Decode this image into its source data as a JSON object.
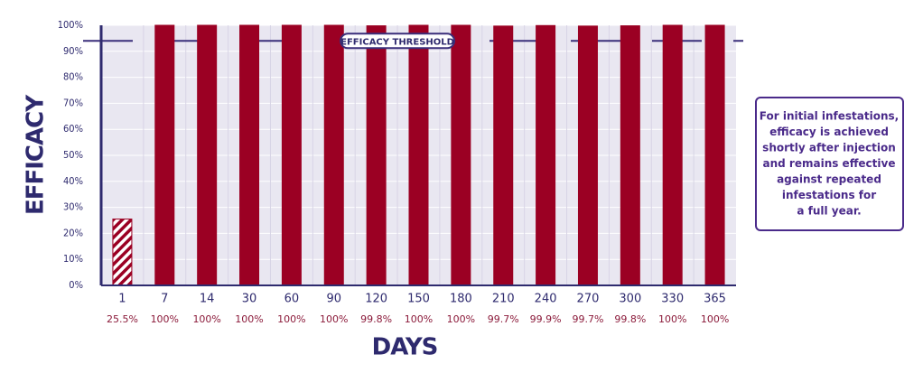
{
  "chart_data": {
    "type": "bar",
    "categories": [
      "1",
      "7",
      "14",
      "30",
      "60",
      "90",
      "120",
      "150",
      "180",
      "210",
      "240",
      "270",
      "300",
      "330",
      "365"
    ],
    "values": [
      25.5,
      100,
      100,
      100,
      100,
      100,
      99.8,
      100,
      100,
      99.7,
      99.9,
      99.7,
      99.8,
      100,
      100
    ],
    "value_labels": [
      "25.5%",
      "100%",
      "100%",
      "100%",
      "100%",
      "100%",
      "99.8%",
      "100%",
      "100%",
      "99.7%",
      "99.9%",
      "99.7%",
      "99.8%",
      "100%",
      "100%"
    ],
    "color": "#9b0023",
    "ylim": [
      0,
      100
    ],
    "yticks": [
      {
        "value": 0,
        "label": "0%"
      },
      {
        "value": 10,
        "label": "10%"
      },
      {
        "value": 20,
        "label": "20%"
      },
      {
        "value": 30,
        "label": "30%"
      },
      {
        "value": 40,
        "label": "40%"
      },
      {
        "value": 50,
        "label": "50%"
      },
      {
        "value": 60,
        "label": "60%"
      },
      {
        "value": 70,
        "label": "70%"
      },
      {
        "value": 80,
        "label": "80%"
      },
      {
        "value": 90,
        "label": "90%"
      },
      {
        "value": 100,
        "label": "100%"
      }
    ],
    "grid": true,
    "y_label": "EFFICACY",
    "x_label": "DAYS",
    "threshold": {
      "value": 94,
      "label": "EFFICACY THRESHOLD"
    },
    "note": [
      "For initial infestations,",
      "efficacy is achieved",
      "shortly after injection",
      "and remains effective",
      "against repeated",
      "infestations for",
      "a full year."
    ]
  }
}
